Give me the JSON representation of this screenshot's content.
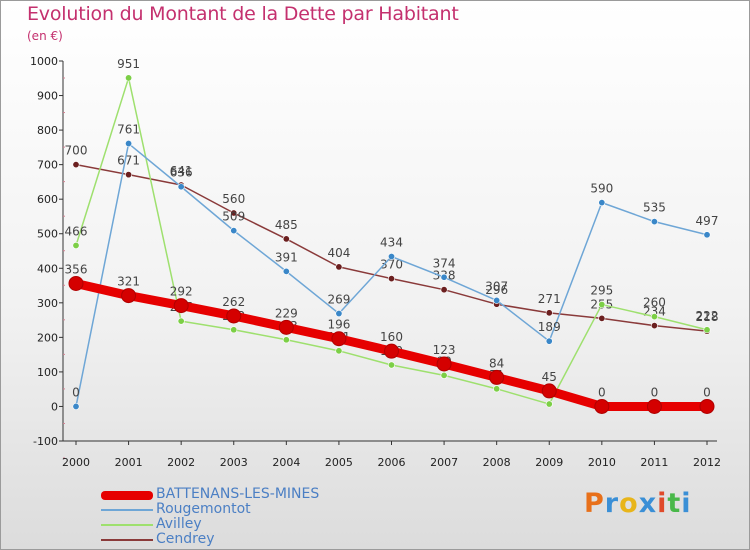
{
  "title": "Evolution du Montant de la Dette par Habitant",
  "unit": "(en €)",
  "logo_text": "Proxiti",
  "logo_colors": [
    "#e8701a",
    "#3a8fd6",
    "#e8b51a",
    "#3a8fd6",
    "#e04a2a",
    "#49b84a",
    "#3a8fd6"
  ],
  "chart_data": {
    "type": "line",
    "categories": [
      "2000",
      "2001",
      "2002",
      "2003",
      "2004",
      "2005",
      "2006",
      "2007",
      "2008",
      "2009",
      "2010",
      "2011",
      "2012"
    ],
    "ylim": [
      -100,
      1000
    ],
    "yticks": [
      -100,
      0,
      100,
      200,
      300,
      400,
      500,
      600,
      700,
      800,
      900,
      1000
    ],
    "grid": false,
    "legend_position": "bottom-left",
    "series": [
      {
        "name": "BATTENANS-LES-MINES",
        "color": "#e60000",
        "marker_color": "#d40000",
        "values": [
          356,
          321,
          292,
          262,
          229,
          196,
          160,
          123,
          84,
          45,
          0,
          0,
          0
        ]
      },
      {
        "name": "Rougemontot",
        "color": "#6ea6d6",
        "marker_color": "#3a87c8",
        "values": [
          0,
          761,
          636,
          509,
          391,
          269,
          434,
          374,
          307,
          189,
          590,
          535,
          497
        ]
      },
      {
        "name": "Avilley",
        "color": "#9ee06e",
        "marker_color": "#7ccf46",
        "values": [
          466,
          951,
          247,
          222,
          193,
          161,
          120,
          90,
          51,
          7,
          295,
          260,
          222
        ]
      },
      {
        "name": "Cendrey",
        "color": "#8a3a3a",
        "marker_color": "#6b1f1f",
        "values": [
          700,
          671,
          641,
          560,
          485,
          404,
          370,
          338,
          296,
          271,
          255,
          234,
          218
        ]
      }
    ]
  }
}
